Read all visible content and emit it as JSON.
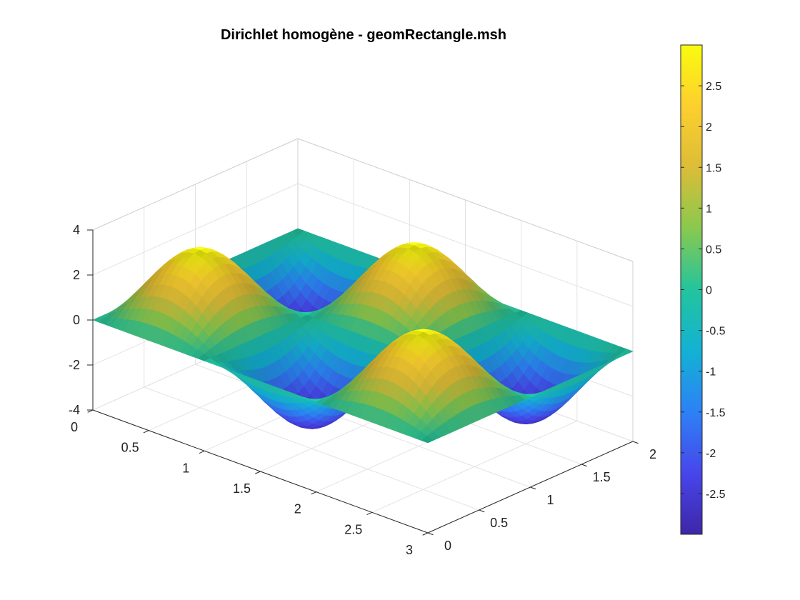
{
  "chart_data": {
    "type": "surface",
    "title": "Dirichlet homogène - geomRectangle.msh",
    "xlabel": "",
    "ylabel": "",
    "zlabel": "",
    "xlim": [
      0,
      3
    ],
    "ylim": [
      0,
      2
    ],
    "zlim": [
      -4,
      4
    ],
    "x_ticks": [
      "0",
      "0.5",
      "1",
      "1.5",
      "2",
      "2.5",
      "3"
    ],
    "y_ticks": [
      "0",
      "0.5",
      "1",
      "1.5",
      "2"
    ],
    "z_ticks": [
      "-4",
      "-2",
      "0",
      "2",
      "4"
    ],
    "function": "3*sin(pi*x)*sin(pi*y)",
    "z_min": -3,
    "z_max": 3,
    "grid": true,
    "colorbar": {
      "colormap": "parula",
      "range": [
        -3,
        3
      ],
      "ticks": [
        "2.5",
        "2",
        "1.5",
        "1",
        "0.5",
        "0",
        "-0.5",
        "-1",
        "-1.5",
        "-2",
        "-2.5"
      ],
      "placement": "right"
    },
    "colormap_stops": [
      "#3e26a8",
      "#4746eb",
      "#2d81f6",
      "#13b2d4",
      "#23c49d",
      "#89c94f",
      "#dcbd37",
      "#fdcf2f",
      "#f9fb0e"
    ]
  }
}
